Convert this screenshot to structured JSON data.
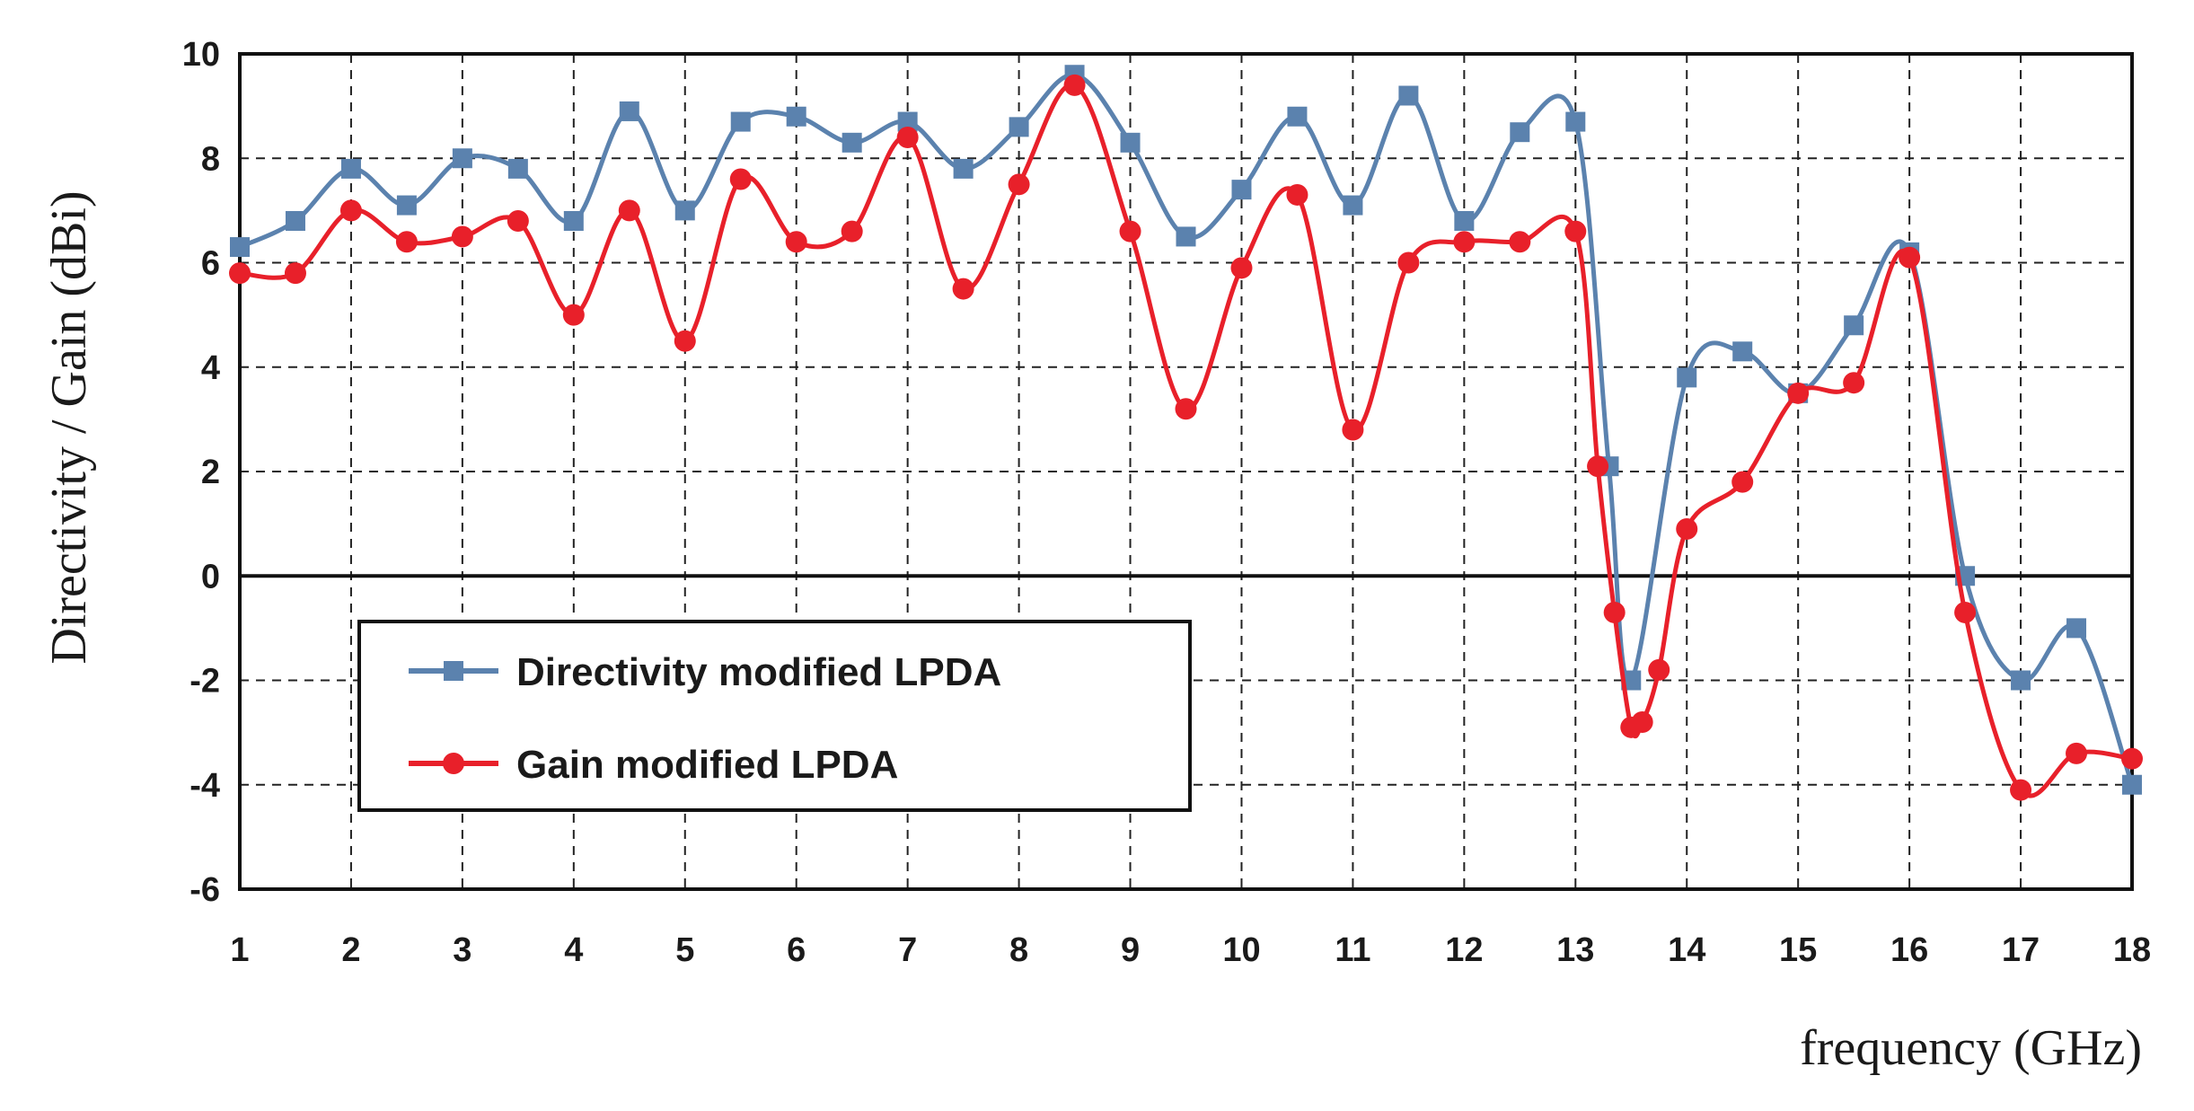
{
  "chart_data": {
    "type": "line",
    "title": "",
    "xlabel": "frequency (GHz)",
    "ylabel": "Directivity / Gain (dBi)",
    "xlim": [
      1,
      18
    ],
    "ylim": [
      -6,
      10
    ],
    "xticks": [
      "1",
      "2",
      "3",
      "4",
      "5",
      "6",
      "7",
      "8",
      "9",
      "10",
      "11",
      "12",
      "13",
      "14",
      "15",
      "16",
      "17",
      "18"
    ],
    "yticks": [
      "-6",
      "-4",
      "-2",
      "0",
      "2",
      "4",
      "6",
      "8",
      "10"
    ],
    "grid": true,
    "legend_position": "lower-left",
    "series": [
      {
        "name": "Directivity modified LPDA",
        "color": "#5b82ae",
        "marker": "square",
        "points": [
          [
            1,
            6.3
          ],
          [
            1.5,
            6.8
          ],
          [
            2,
            7.8
          ],
          [
            2.5,
            7.1
          ],
          [
            3,
            8.0
          ],
          [
            3.5,
            7.8
          ],
          [
            4,
            6.8
          ],
          [
            4.5,
            8.9
          ],
          [
            5,
            7.0
          ],
          [
            5.5,
            8.7
          ],
          [
            6,
            8.8
          ],
          [
            6.5,
            8.3
          ],
          [
            7,
            8.7
          ],
          [
            7.5,
            7.8
          ],
          [
            8,
            8.6
          ],
          [
            8.5,
            9.6
          ],
          [
            9,
            8.3
          ],
          [
            9.5,
            6.5
          ],
          [
            10,
            7.4
          ],
          [
            10.5,
            8.8
          ],
          [
            11,
            7.1
          ],
          [
            11.5,
            9.2
          ],
          [
            12,
            6.8
          ],
          [
            12.5,
            8.5
          ],
          [
            13,
            8.7
          ],
          [
            13.3,
            2.1
          ],
          [
            13.5,
            -2.0
          ],
          [
            14,
            3.8
          ],
          [
            14.5,
            4.3
          ],
          [
            15,
            3.5
          ],
          [
            15.5,
            4.8
          ],
          [
            16,
            6.2
          ],
          [
            16.5,
            0.0
          ],
          [
            17,
            -2.0
          ],
          [
            17.5,
            -1.0
          ],
          [
            18,
            -4.0
          ]
        ]
      },
      {
        "name": "Gain modified LPDA",
        "color": "#e8202a",
        "marker": "circle",
        "points": [
          [
            1,
            5.8
          ],
          [
            1.5,
            5.8
          ],
          [
            2,
            7.0
          ],
          [
            2.5,
            6.4
          ],
          [
            3,
            6.5
          ],
          [
            3.5,
            6.8
          ],
          [
            4,
            5.0
          ],
          [
            4.5,
            7.0
          ],
          [
            5,
            4.5
          ],
          [
            5.5,
            7.6
          ],
          [
            6,
            6.4
          ],
          [
            6.5,
            6.6
          ],
          [
            7,
            8.4
          ],
          [
            7.5,
            5.5
          ],
          [
            8,
            7.5
          ],
          [
            8.5,
            9.4
          ],
          [
            9,
            6.6
          ],
          [
            9.5,
            3.2
          ],
          [
            10,
            5.9
          ],
          [
            10.5,
            7.3
          ],
          [
            11,
            2.8
          ],
          [
            11.5,
            6.0
          ],
          [
            12,
            6.4
          ],
          [
            12.5,
            6.4
          ],
          [
            13,
            6.6
          ],
          [
            13.2,
            2.1
          ],
          [
            13.35,
            -0.7
          ],
          [
            13.5,
            -2.9
          ],
          [
            13.6,
            -2.8
          ],
          [
            13.75,
            -1.8
          ],
          [
            14,
            0.9
          ],
          [
            14.5,
            1.8
          ],
          [
            15,
            3.5
          ],
          [
            15.5,
            3.7
          ],
          [
            16,
            6.1
          ],
          [
            16.5,
            -0.7
          ],
          [
            17,
            -4.1
          ],
          [
            17.5,
            -3.4
          ],
          [
            18,
            -3.5
          ]
        ]
      }
    ]
  }
}
